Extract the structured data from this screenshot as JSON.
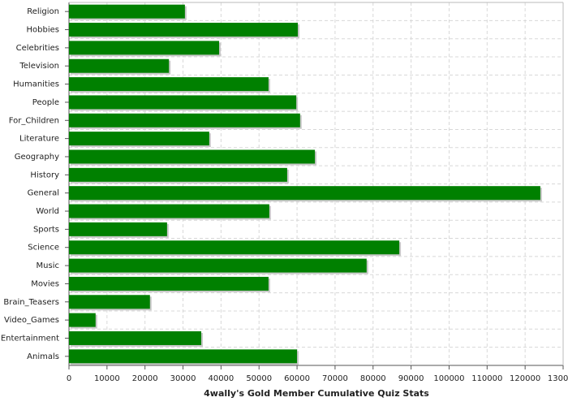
{
  "chart_data": {
    "type": "hbar",
    "x_label": "4wally's Gold Member Cumulative Quiz Stats",
    "categories": [
      "Religion",
      "Hobbies",
      "Celebrities",
      "Television",
      "Humanities",
      "People",
      "For_Children",
      "Literature",
      "Geography",
      "History",
      "General",
      "World",
      "Sports",
      "Science",
      "Music",
      "Movies",
      "Brain_Teasers",
      "Video_Games",
      "Entertainment",
      "Animals"
    ],
    "values": [
      30500,
      60200,
      39500,
      26300,
      52500,
      59800,
      60800,
      36900,
      64700,
      57400,
      124000,
      52700,
      25800,
      86900,
      78300,
      52500,
      21300,
      7000,
      34800,
      60000
    ],
    "color": "#008000",
    "xlim": [
      0,
      130000
    ],
    "xticks": [
      0,
      10000,
      20000,
      30000,
      40000,
      50000,
      60000,
      70000,
      80000,
      90000,
      100000,
      110000,
      120000,
      130000
    ],
    "grid": true
  }
}
